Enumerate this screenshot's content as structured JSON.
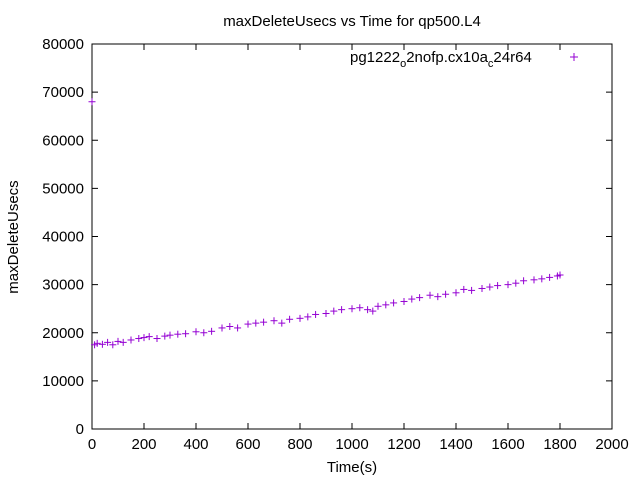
{
  "chart_data": {
    "type": "scatter",
    "title": "maxDeleteUsecs vs Time for qp500.L4",
    "xlabel": "Time(s)",
    "ylabel": "maxDeleteUsecs",
    "xlim": [
      0,
      2000
    ],
    "ylim": [
      0,
      80000
    ],
    "xticks": [
      "0",
      "200",
      "400",
      "600",
      "800",
      "1000",
      "1200",
      "1400",
      "1600",
      "1800",
      "2000"
    ],
    "yticks": [
      "0",
      "10000",
      "20000",
      "30000",
      "40000",
      "50000",
      "60000",
      "70000",
      "80000"
    ],
    "grid": false,
    "legend_position": "top-right",
    "marker": "+",
    "color": "#9400d3",
    "series": [
      {
        "name": "pg1222_o2nofp.cx10a_c24r64",
        "name_parts": {
          "a": "pg1222",
          "b": "o",
          "c": "2nofp.cx10a",
          "d": "c",
          "e": "24r64"
        },
        "x": [
          0,
          10,
          20,
          40,
          60,
          80,
          100,
          120,
          150,
          180,
          200,
          220,
          250,
          280,
          300,
          330,
          360,
          400,
          430,
          460,
          500,
          530,
          560,
          600,
          630,
          660,
          700,
          730,
          760,
          800,
          830,
          860,
          900,
          930,
          960,
          1000,
          1030,
          1060,
          1080,
          1100,
          1130,
          1160,
          1200,
          1230,
          1260,
          1300,
          1330,
          1360,
          1400,
          1430,
          1460,
          1500,
          1530,
          1560,
          1600,
          1630,
          1660,
          1700,
          1730,
          1760,
          1790,
          1800
        ],
        "y": [
          68000,
          17500,
          17800,
          17600,
          18000,
          17500,
          18200,
          18000,
          18500,
          18800,
          19000,
          19200,
          18800,
          19300,
          19500,
          19700,
          19800,
          20200,
          20000,
          20300,
          21000,
          21300,
          21000,
          21800,
          22000,
          22200,
          22500,
          22000,
          22800,
          23000,
          23300,
          23800,
          24000,
          24500,
          24800,
          25000,
          25200,
          24800,
          24500,
          25500,
          25800,
          26200,
          26500,
          27000,
          27300,
          27800,
          27500,
          28000,
          28300,
          29000,
          28800,
          29200,
          29500,
          29800,
          30000,
          30300,
          30800,
          31000,
          31200,
          31500,
          31800,
          32000
        ]
      }
    ]
  }
}
